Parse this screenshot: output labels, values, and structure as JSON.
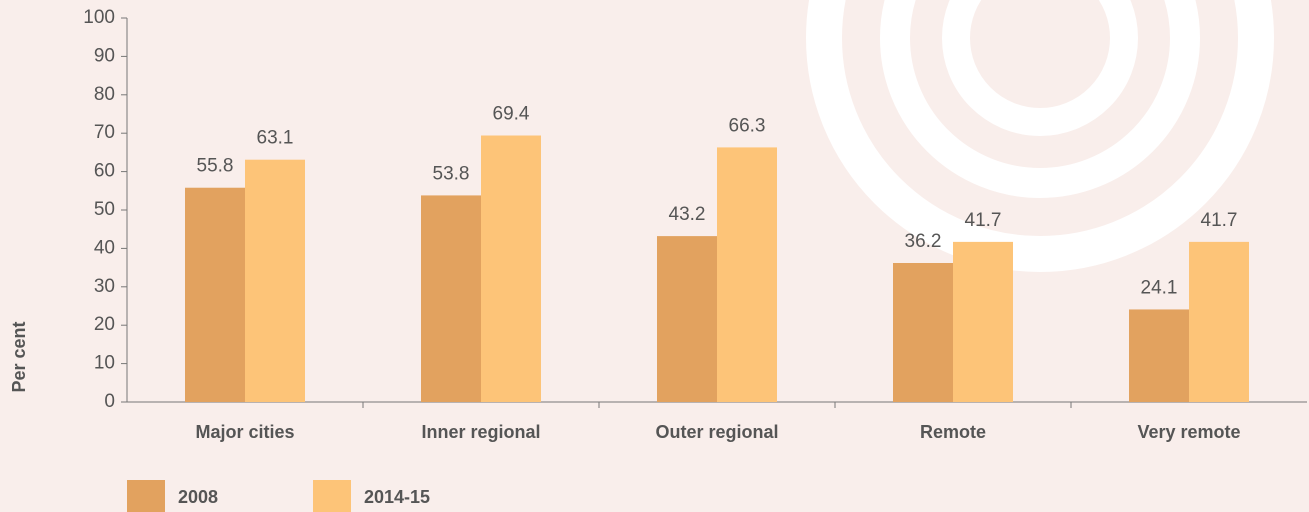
{
  "chart_data": {
    "type": "bar",
    "y_label": "Per cent",
    "categories": [
      "Major cities",
      "Inner regional",
      "Outer regional",
      "Remote",
      "Very remote"
    ],
    "series": [
      {
        "name": "2008",
        "color": "#e2a25f",
        "values": [
          55.8,
          53.8,
          43.2,
          36.2,
          24.1
        ]
      },
      {
        "name": "2014-15",
        "color": "#fdc478",
        "values": [
          63.1,
          69.4,
          66.3,
          41.7,
          41.7
        ]
      }
    ],
    "ylim": [
      0,
      100
    ],
    "yticks": [
      0,
      10,
      20,
      30,
      40,
      50,
      60,
      70,
      80,
      90,
      100
    ],
    "grid": false,
    "legend": "bottom-left"
  }
}
